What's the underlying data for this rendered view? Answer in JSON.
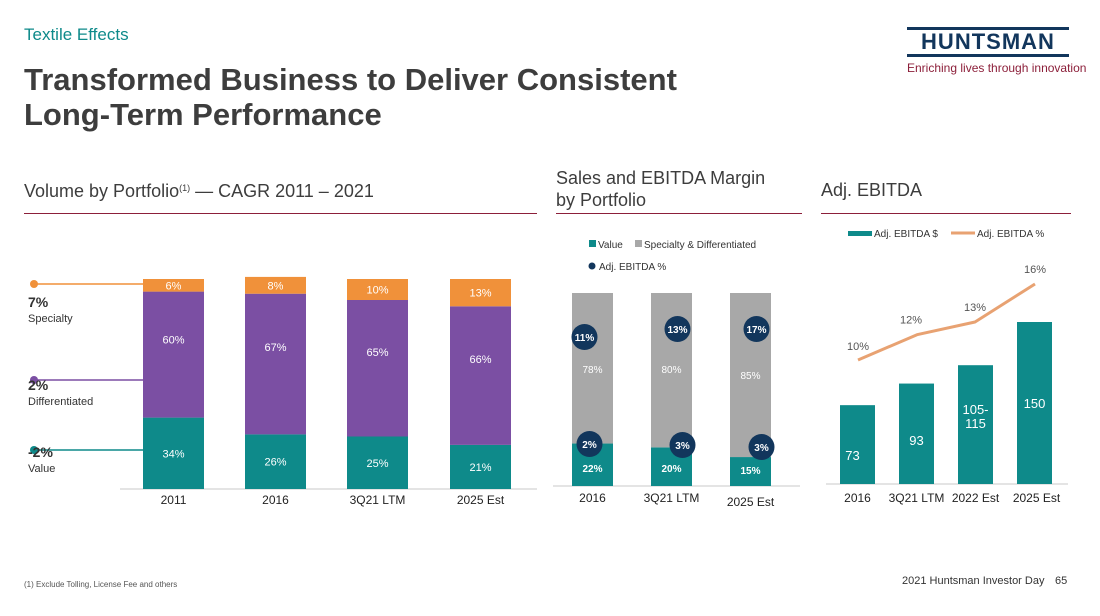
{
  "header": {
    "category": "Textile Effects",
    "title_line1": "Transformed Business to Deliver Consistent",
    "title_line2": "Long-Term Performance",
    "logo_text": "HUNTSMAN",
    "tagline": "Enriching lives through innovation"
  },
  "colors": {
    "teal": "#0e8a8a",
    "purple": "#7b4fa3",
    "orange": "#f0913a",
    "gray": "#a8a8a8",
    "navy": "#12365c",
    "line_orange": "#e8a272",
    "divider": "#8c1f3a"
  },
  "footer": {
    "footnote": "(1) Exclude Tolling, License Fee and others",
    "event": "2021 Huntsman Investor Day",
    "page": "65"
  },
  "chart_data": [
    {
      "type": "bar",
      "stacked": true,
      "title": "Volume by Portfolio",
      "title_sup": "(1)",
      "title_suffix": " — CAGR 2011 – 2021",
      "categories": [
        "2011",
        "2016",
        "3Q21 LTM",
        "2025 Est"
      ],
      "series": [
        {
          "values": [
            34,
            26,
            25,
            21
          ],
          "labels": [
            "34%",
            "26%",
            "25%",
            "21%"
          ],
          "color": "teal"
        },
        {
          "values": [
            60,
            67,
            65,
            66
          ],
          "labels": [
            "60%",
            "67%",
            "65%",
            "66%"
          ],
          "color": "purple"
        },
        {
          "values": [
            6,
            8,
            10,
            13
          ],
          "labels": [
            "6%",
            "8%",
            "10%",
            "13%"
          ],
          "color": "orange"
        }
      ],
      "cagr": [
        {
          "value": "7%",
          "name": "Specialty",
          "color": "orange"
        },
        {
          "value": "2%",
          "name": "Differentiated",
          "color": "purple"
        },
        {
          "value": "-2%",
          "name": "Value",
          "color": "teal"
        }
      ],
      "ylim": [
        0,
        100
      ]
    },
    {
      "type": "bar",
      "stacked": true,
      "title_line1": "Sales and EBITDA Margin",
      "title_line2": "by Portfolio",
      "categories": [
        "2016",
        "3Q21 LTM",
        "2025 Est"
      ],
      "legend": [
        "Value",
        "Specialty & Differentiated",
        "Adj. EBITDA %"
      ],
      "legend_position": "top",
      "series": [
        {
          "name": "Value",
          "values": [
            22,
            20,
            15
          ],
          "labels": [
            "22%",
            "20%",
            "15%"
          ],
          "color": "teal"
        },
        {
          "name": "Specialty & Differentiated",
          "values": [
            78,
            80,
            85
          ],
          "labels": [
            "78%",
            "80%",
            "85%"
          ],
          "color": "gray"
        }
      ],
      "ebitda_value": [
        "2%",
        "3%",
        "3%"
      ],
      "ebitda_specialty": [
        "11%",
        "13%",
        "17%"
      ],
      "ylim": [
        0,
        100
      ]
    },
    {
      "type": "bar",
      "title": "Adj. EBITDA",
      "categories": [
        "2016",
        "3Q21 LTM",
        "2022 Est",
        "2025 Est"
      ],
      "legend": [
        "Adj. EBITDA $",
        "Adj. EBITDA %"
      ],
      "legend_position": "top",
      "bars": {
        "name": "Adj. EBITDA $",
        "values": [
          73,
          93,
          110,
          150
        ],
        "labels": [
          "73",
          "93",
          "105-\n115",
          "150"
        ]
      },
      "line": {
        "name": "Adj. EBITDA %",
        "values": [
          10,
          12,
          13,
          16
        ],
        "labels": [
          "10%",
          "12%",
          "13%",
          "16%"
        ]
      },
      "ylim": [
        0,
        190
      ]
    }
  ]
}
